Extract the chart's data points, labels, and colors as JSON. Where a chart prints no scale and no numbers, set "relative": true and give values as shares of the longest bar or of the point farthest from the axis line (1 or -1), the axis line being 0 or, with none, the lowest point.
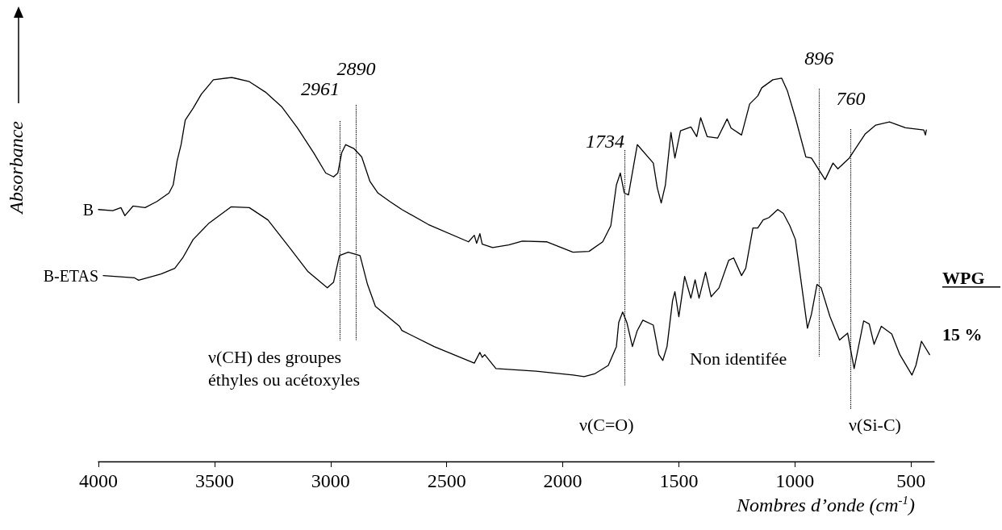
{
  "chart_data": {
    "type": "line",
    "relative": true,
    "xlabel": "Nombres d’onde (cm$^{-1}$)",
    "ylabel": "Absorbance",
    "xlim": [
      4000,
      400
    ],
    "xticks": [
      4000,
      3500,
      3000,
      2500,
      2000,
      1500,
      1000,
      500
    ],
    "grid": false,
    "legend": false,
    "line_style": "solid",
    "series": [
      {
        "name": "B",
        "color": "#000000",
        "x": [
          4000,
          3938,
          3903,
          3886,
          3851,
          3799,
          3748,
          3696,
          3678,
          3661,
          3644,
          3626,
          3592,
          3557,
          3505,
          3426,
          3350,
          3281,
          3211,
          3142,
          3073,
          3021,
          2987,
          2969,
          2952,
          2935,
          2900,
          2866,
          2831,
          2796,
          2745,
          2693,
          2579,
          2406,
          2381,
          2371,
          2357,
          2347,
          2302,
          2233,
          2174,
          2070,
          1956,
          1887,
          1828,
          1793,
          1769,
          1752,
          1735,
          1717,
          1679,
          1610,
          1593,
          1576,
          1558,
          1534,
          1517,
          1493,
          1448,
          1423,
          1406,
          1378,
          1333,
          1292,
          1275,
          1230,
          1195,
          1160,
          1143,
          1095,
          1057,
          1033,
          998,
          953,
          929,
          870,
          836,
          815,
          766,
          697,
          652,
          593,
          524,
          445,
          438,
          434
        ],
        "values": [
          0.656,
          0.653,
          0.661,
          0.64,
          0.665,
          0.661,
          0.677,
          0.699,
          0.72,
          0.783,
          0.825,
          0.889,
          0.92,
          0.956,
          0.994,
          1,
          0.989,
          0.962,
          0.924,
          0.868,
          0.804,
          0.751,
          0.741,
          0.751,
          0.804,
          0.825,
          0.815,
          0.793,
          0.73,
          0.699,
          0.677,
          0.656,
          0.617,
          0.572,
          0.589,
          0.568,
          0.593,
          0.566,
          0.557,
          0.564,
          0.574,
          0.572,
          0.545,
          0.547,
          0.572,
          0.614,
          0.72,
          0.751,
          0.699,
          0.694,
          0.825,
          0.777,
          0.713,
          0.673,
          0.72,
          0.857,
          0.79,
          0.861,
          0.871,
          0.846,
          0.895,
          0.846,
          0.842,
          0.892,
          0.868,
          0.85,
          0.931,
          0.952,
          0.973,
          0.994,
          0.998,
          0.966,
          0.895,
          0.793,
          0.79,
          0.734,
          0.777,
          0.762,
          0.79,
          0.853,
          0.876,
          0.884,
          0.869,
          0.863,
          0.85,
          0.863
        ]
      },
      {
        "name": "B-ETAS",
        "color": "#000000",
        "x": [
          3979,
          3844,
          3827,
          3730,
          3671,
          3637,
          3592,
          3523,
          3429,
          3350,
          3270,
          3177,
          3097,
          3014,
          2987,
          2962,
          2924,
          2873,
          2841,
          2807,
          2703,
          2693,
          2554,
          2381,
          2357,
          2347,
          2336,
          2288,
          2115,
          1956,
          1908,
          1863,
          1804,
          1769,
          1759,
          1742,
          1724,
          1700,
          1679,
          1655,
          1610,
          1586,
          1569,
          1551,
          1527,
          1517,
          1500,
          1475,
          1448,
          1430,
          1413,
          1385,
          1361,
          1327,
          1285,
          1264,
          1230,
          1212,
          1181,
          1160,
          1137,
          1112,
          1074,
          1050,
          1022,
          998,
          946,
          929,
          905,
          887,
          849,
          808,
          773,
          745,
          704,
          680,
          659,
          628,
          583,
          548,
          496,
          479,
          455,
          420
        ],
        "values": [
          0.484,
          0.478,
          0.472,
          0.488,
          0.503,
          0.53,
          0.578,
          0.621,
          0.663,
          0.661,
          0.629,
          0.557,
          0.494,
          0.452,
          0.467,
          0.536,
          0.545,
          0.536,
          0.461,
          0.404,
          0.352,
          0.341,
          0.299,
          0.256,
          0.284,
          0.271,
          0.278,
          0.242,
          0.235,
          0.225,
          0.221,
          0.228,
          0.25,
          0.299,
          0.362,
          0.389,
          0.362,
          0.299,
          0.341,
          0.368,
          0.355,
          0.278,
          0.263,
          0.299,
          0.419,
          0.442,
          0.377,
          0.482,
          0.425,
          0.473,
          0.425,
          0.493,
          0.429,
          0.452,
          0.524,
          0.53,
          0.484,
          0.503,
          0.608,
          0.608,
          0.629,
          0.635,
          0.656,
          0.646,
          0.614,
          0.578,
          0.347,
          0.383,
          0.461,
          0.452,
          0.377,
          0.316,
          0.334,
          0.242,
          0.366,
          0.358,
          0.305,
          0.352,
          0.332,
          0.278,
          0.225,
          0.25,
          0.313,
          0.278
        ]
      }
    ],
    "ref_lines": [
      {
        "axis": "x",
        "value": 2961,
        "label": "2961",
        "line_style": "dotted"
      },
      {
        "axis": "x",
        "value": 2890,
        "label": "2890",
        "line_style": "dotted"
      },
      {
        "axis": "x",
        "value": 1734,
        "label": "1734",
        "line_style": "dotted"
      },
      {
        "axis": "x",
        "value": 896,
        "label": "896",
        "line_style": "dotted"
      },
      {
        "axis": "x",
        "value": 760,
        "label": "760",
        "line_style": "dotted"
      }
    ],
    "annotations": [
      "ν(CH) des groupes\néthyles ou acétoxyles",
      "ν(C=O)",
      "Non identifée",
      "ν(Si-C)",
      "WPG",
      "15 %"
    ]
  }
}
